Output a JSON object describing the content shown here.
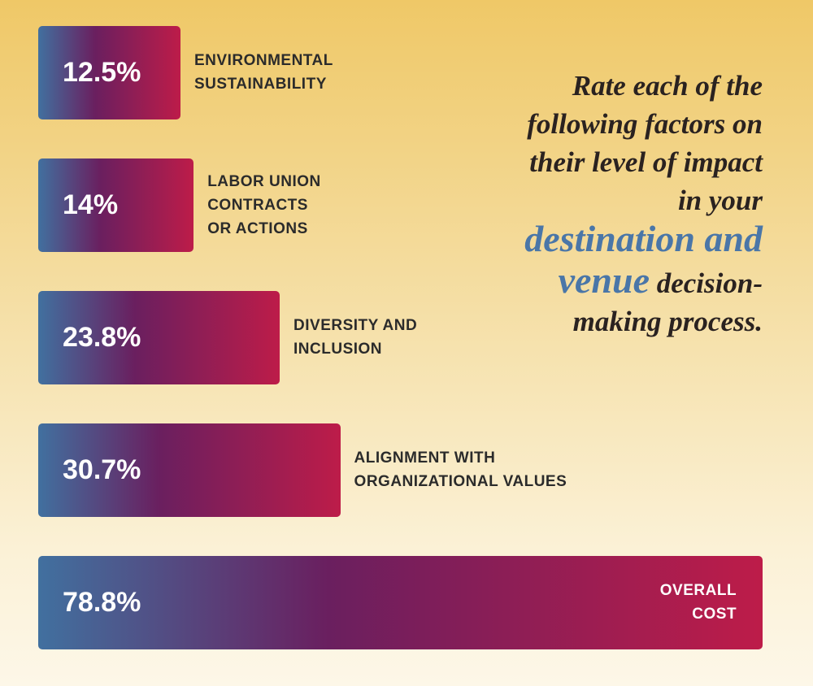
{
  "chart_data": {
    "type": "bar",
    "orientation": "horizontal",
    "title_parts": [
      "Rate each of the following factors on their level of impact in your",
      "destination and venue",
      "decision-making process."
    ],
    "categories": [
      "ENVIRONMENTAL\nSUSTAINABILITY",
      "LABOR UNION\nCONTRACTS\nOR ACTIONS",
      "DIVERSITY AND\nINCLUSION",
      "ALIGNMENT WITH\nORGANIZATIONAL VALUES",
      "OVERALL\nCOST"
    ],
    "values": [
      12.5,
      14,
      23.8,
      30.7,
      78.8
    ],
    "value_labels": [
      "12.5%",
      "14%",
      "23.8%",
      "30.7%",
      "78.8%"
    ],
    "colors": [
      "#41709f",
      "#6a1f5f",
      "#bd1c49"
    ],
    "highlight_color": "#4a76a8"
  }
}
